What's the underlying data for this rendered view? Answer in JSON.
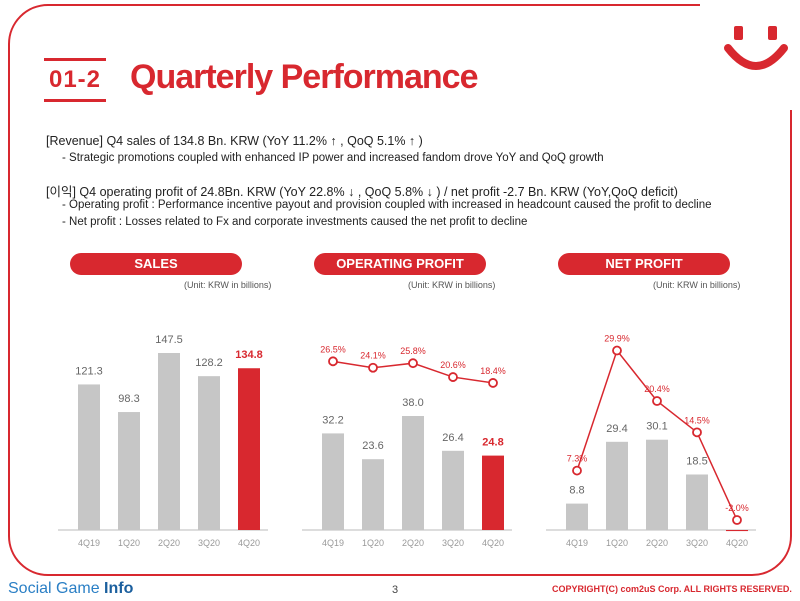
{
  "header": {
    "section_number": "01-2",
    "title": "Quarterly Performance"
  },
  "summary": {
    "revenue_line": "[Revenue] Q4 sales of 134.8 Bn. KRW (YoY 11.2% ↑ , QoQ 5.1% ↑ )",
    "revenue_bullet": "-  Strategic promotions coupled with enhanced IP power and increased fandom drove YoY and QoQ growth",
    "profit_line": "[이익] Q4 operating profit of 24.8Bn. KRW (YoY 22.8% ↓ , QoQ 5.8% ↓ ) / net profit -2.7 Bn. KRW (YoY,QoQ deficit)",
    "op_bullet": "-  Operating profit : Performance incentive payout and provision coupled with increased in headcount caused the profit to decline",
    "net_bullet": "-  Net profit : Losses related to Fx and corporate investments caused the net profit to decline"
  },
  "colors": {
    "accent": "#d8282f",
    "bar": "#c6c6c6",
    "logo_blue": "#2a7fc5"
  },
  "chart_data": [
    {
      "type": "bar",
      "title": "SALES",
      "unit": "(Unit: KRW in billions)",
      "categories": [
        "4Q19",
        "1Q20",
        "2Q20",
        "3Q20",
        "4Q20"
      ],
      "values": [
        121.3,
        98.3,
        147.5,
        128.2,
        134.8
      ],
      "labels": [
        "121.3",
        "98.3",
        "147.5",
        "128.2",
        "134.8"
      ],
      "highlight_index": 4
    },
    {
      "type": "bar",
      "title": "OPERATING PROFIT",
      "unit": "(Unit: KRW in billions)",
      "categories": [
        "4Q19",
        "1Q20",
        "2Q20",
        "3Q20",
        "4Q20"
      ],
      "values": [
        32.2,
        23.6,
        38.0,
        26.4,
        24.8
      ],
      "labels": [
        "32.2",
        "23.6",
        "38.0",
        "26.4",
        "24.8"
      ],
      "highlight_index": 4,
      "margin_line": [
        26.5,
        24.1,
        25.8,
        20.6,
        18.4
      ],
      "margin_labels": [
        "26.5%",
        "24.1%",
        "25.8%",
        "20.6%",
        "18.4%"
      ]
    },
    {
      "type": "bar",
      "title": "NET PROFIT",
      "unit": "(Unit: KRW in billions)",
      "categories": [
        "4Q19",
        "1Q20",
        "2Q20",
        "3Q20",
        "4Q20"
      ],
      "values": [
        8.8,
        29.4,
        30.1,
        18.5,
        -2.7
      ],
      "labels": [
        "8.8",
        "29.4",
        "30.1",
        "18.5",
        ""
      ],
      "highlight_index": 4,
      "margin_line": [
        7.3,
        29.9,
        20.4,
        14.5,
        -2.0
      ],
      "margin_labels": [
        "7.3%",
        "29.9%",
        "20.4%",
        "14.5%",
        "-2.0%"
      ]
    }
  ],
  "footer": {
    "brand_plain": "Social Game ",
    "brand_bold": "Info",
    "page_number": "3",
    "copyright": "COPYRIGHT(C) com2uS Corp. ALL RIGHTS RESERVED."
  }
}
